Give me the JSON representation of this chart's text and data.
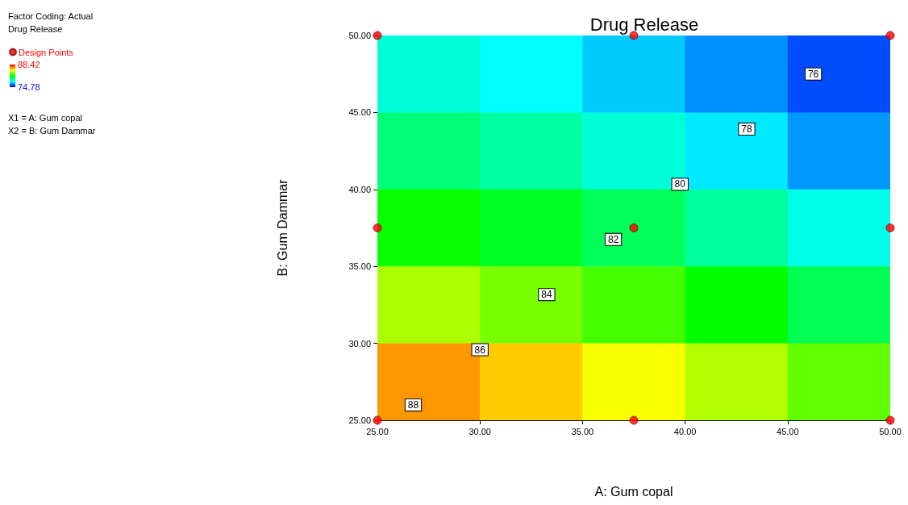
{
  "chart_data": {
    "type": "heatmap",
    "title": "Drug Release",
    "xlabel": "A: Gum copal",
    "ylabel": "B: Gum Dammar",
    "clabel": "Drug Release",
    "x": [
      27.5,
      32.5,
      37.5,
      42.5,
      47.5
    ],
    "cells": [
      [
        78.7,
        78.2,
        77.5,
        76.7,
        75.8
      ],
      [
        80.0,
        79.4,
        78.7,
        77.9,
        76.8
      ],
      [
        81.7,
        81.1,
        80.4,
        79.5,
        78.5
      ],
      [
        83.9,
        83.2,
        82.5,
        81.6,
        80.5
      ],
      [
        86.4,
        85.7,
        84.9,
        84.0,
        82.9
      ]
    ],
    "colors": [
      "#0000ff",
      "#00ffff",
      "#00ff00",
      "#ffff00",
      "#ff0000"
    ],
    "clim": [
      74.78,
      88.42
    ],
    "cticks": [
      74.78,
      88.42
    ],
    "xlim": [
      25,
      50
    ],
    "ylim": [
      25,
      50
    ],
    "xticks": [
      {
        "value": 25,
        "label": "25.00"
      },
      {
        "value": 30,
        "label": "30.00"
      },
      {
        "value": 35,
        "label": "35.00"
      },
      {
        "value": 40,
        "label": "40.00"
      },
      {
        "value": 45,
        "label": "45.00"
      },
      {
        "value": 50,
        "label": "50.00"
      }
    ],
    "yticks": [
      {
        "value": 25,
        "label": "25.00"
      },
      {
        "value": 30,
        "label": "30.00"
      },
      {
        "value": 35,
        "label": "35.00"
      },
      {
        "value": 40,
        "label": "40.00"
      },
      {
        "value": 45,
        "label": "45.00"
      },
      {
        "value": 50,
        "label": "50.00"
      }
    ],
    "series": [
      {
        "type": "scatter",
        "name": "Design Points",
        "color": "#ff0000",
        "x": [
          25,
          37.5,
          50,
          25,
          37.5,
          50,
          25,
          37.5,
          50
        ],
        "values": [
          50,
          50,
          50,
          37.5,
          37.5,
          37.5,
          25,
          25,
          25
        ]
      }
    ],
    "marker": "circle",
    "legend": "top left",
    "grid": false,
    "annotations": [
      "Factor Coding: Actual",
      "X1 = A: Gum copal",
      "X2 = B: Gum Dammar",
      "76",
      "78",
      "80",
      "82",
      "84",
      "86",
      "88"
    ]
  }
}
